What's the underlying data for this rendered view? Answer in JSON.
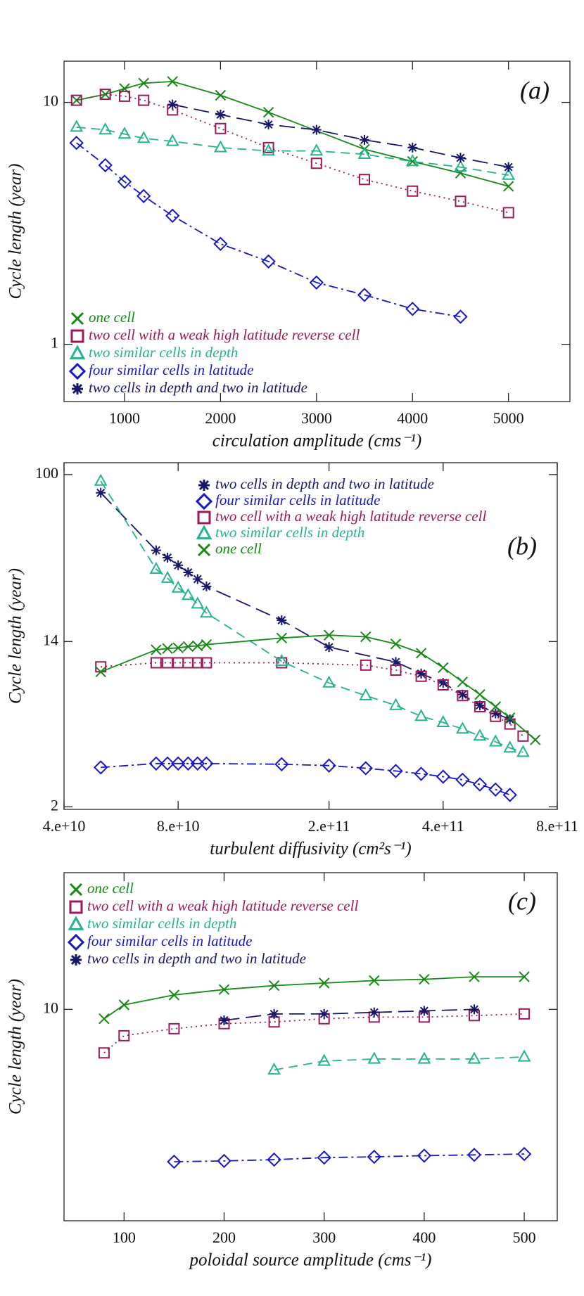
{
  "chart_data": [
    {
      "type": "line",
      "annotation": "(a)",
      "y_label": "Cycle length (year)",
      "x_label": "circulation amplitude (cms⁻¹)",
      "xlim": [
        370,
        5640
      ],
      "xticks": [
        1000,
        2000,
        3000,
        4000,
        5000
      ],
      "ylim": [
        0.58,
        14.8
      ],
      "yticks": [
        1,
        10
      ],
      "ylog": true,
      "xlog": false,
      "legend": "lower left",
      "series": [
        {
          "name": "one cell",
          "color": "#158a15",
          "marker": "x",
          "line_style": "solid",
          "x": [
            500,
            800,
            1000,
            1200,
            1500,
            2000,
            2500,
            3500,
            4000,
            4500,
            5000
          ],
          "values": [
            10.2,
            10.8,
            11.4,
            12.0,
            12.2,
            10.7,
            9.1,
            6.4,
            5.7,
            5.1,
            4.5
          ]
        },
        {
          "name": "two cell with a weak high latitude reverse cell",
          "color": "#9a1a5c",
          "marker": "square",
          "line_style": "dotted",
          "x": [
            500,
            800,
            1000,
            1200,
            1500,
            2000,
            2500,
            3000,
            3500,
            4000,
            4500,
            5000
          ],
          "values": [
            10.2,
            10.8,
            10.6,
            10.2,
            9.3,
            7.8,
            6.5,
            5.6,
            4.8,
            4.3,
            3.9,
            3.5
          ]
        },
        {
          "name": "two similar cells in depth",
          "color": "#25b38f",
          "marker": "triangle",
          "line_style": "dashed",
          "x": [
            500,
            800,
            1000,
            1200,
            1500,
            2000,
            2500,
            3000,
            3500,
            4000,
            4500,
            5000
          ],
          "values": [
            7.9,
            7.7,
            7.4,
            7.1,
            6.9,
            6.5,
            6.3,
            6.3,
            6.1,
            5.7,
            5.4,
            5.0
          ]
        },
        {
          "name": "four similar cells in latitude",
          "color": "#1717c4",
          "marker": "diamond",
          "line_style": "dashdot",
          "x": [
            500,
            800,
            1000,
            1200,
            1500,
            2000,
            2500,
            3000,
            3500,
            4000,
            4500
          ],
          "values": [
            6.8,
            5.5,
            4.7,
            4.1,
            3.4,
            2.6,
            2.2,
            1.8,
            1.6,
            1.4,
            1.3
          ]
        },
        {
          "name": "two cells in depth and two in latitude",
          "color": "#16166b",
          "marker": "asterisk",
          "line_style": "longdash",
          "x": [
            1500,
            2000,
            2500,
            3000,
            3500,
            4000,
            4500,
            5000
          ],
          "values": [
            9.8,
            8.9,
            8.1,
            7.7,
            7.0,
            6.5,
            5.9,
            5.4
          ]
        }
      ]
    },
    {
      "type": "line",
      "annotation": "(b)",
      "y_label": "Cycle length (year)",
      "x_label": "turbulent diffusivity (cm²s⁻¹)",
      "xlim": [
        40000000000.0,
        800000000000.0
      ],
      "xticks": [
        {
          "value": 40000000000.0,
          "label": "4.e+10"
        },
        {
          "value": 80000000000.0,
          "label": "8.e+10"
        },
        {
          "value": 200000000000.0,
          "label": "2.e+11"
        },
        {
          "value": 400000000000.0,
          "label": "4.e+11"
        },
        {
          "value": 800000000000.0,
          "label": "8.e+11"
        }
      ],
      "ylim": [
        1.94,
        115
      ],
      "yticks": [
        2,
        14,
        100
      ],
      "ylog": true,
      "xlog": true,
      "legend": "upper center",
      "series": [
        {
          "name": "two cells in depth and two in latitude",
          "color": "#16166b",
          "marker": "asterisk",
          "line_style": "longdash",
          "x": [
            50000000000.0,
            70000000000.0,
            75000000000.0,
            80000000000.0,
            85000000000.0,
            90000000000.0,
            95000000000.0,
            150000000000.0,
            200000000000.0,
            300000000000.0,
            350000000000.0,
            400000000000.0,
            450000000000.0,
            500000000000.0,
            550000000000.0,
            600000000000.0
          ],
          "values": [
            80.7,
            41,
            37.6,
            34.4,
            31.6,
            29.2,
            26.8,
            18.0,
            13.1,
            11.0,
            9.6,
            8.6,
            7.5,
            6.6,
            6.0,
            5.6
          ]
        },
        {
          "name": "four similar cells in latitude",
          "color": "#1717c4",
          "marker": "diamond",
          "line_style": "dashdot",
          "x": [
            50000000000.0,
            70000000000.0,
            75000000000.0,
            80000000000.0,
            85000000000.0,
            90000000000.0,
            95000000000.0,
            150000000000.0,
            200000000000.0,
            250000000000.0,
            300000000000.0,
            350000000000.0,
            400000000000.0,
            450000000000.0,
            500000000000.0,
            550000000000.0,
            600000000000.0
          ],
          "values": [
            3.18,
            3.33,
            3.33,
            3.33,
            3.33,
            3.33,
            3.33,
            3.3,
            3.25,
            3.15,
            3.05,
            2.95,
            2.85,
            2.75,
            2.6,
            2.45,
            2.3
          ]
        },
        {
          "name": "two cell with a weak high latitude reverse cell",
          "color": "#9a1a5c",
          "marker": "square",
          "line_style": "dotted",
          "x": [
            50000000000.0,
            70000000000.0,
            75000000000.0,
            80000000000.0,
            85000000000.0,
            90000000000.0,
            95000000000.0,
            150000000000.0,
            250000000000.0,
            300000000000.0,
            350000000000.0,
            400000000000.0,
            450000000000.0,
            500000000000.0,
            550000000000.0,
            600000000000.0,
            650000000000.0
          ],
          "values": [
            10.4,
            10.9,
            10.9,
            10.9,
            10.9,
            10.9,
            10.9,
            10.9,
            10.6,
            10.0,
            9.3,
            8.4,
            7.4,
            6.5,
            5.8,
            5.3,
            4.6
          ]
        },
        {
          "name": "two similar cells in depth",
          "color": "#25b38f",
          "marker": "triangle",
          "line_style": "dashed",
          "x": [
            50000000000.0,
            70000000000.0,
            75000000000.0,
            80000000000.0,
            85000000000.0,
            90000000000.0,
            95000000000.0,
            150000000000.0,
            200000000000.0,
            250000000000.0,
            300000000000.0,
            350000000000.0,
            400000000000.0,
            450000000000.0,
            500000000000.0,
            550000000000.0,
            600000000000.0,
            650000000000.0
          ],
          "values": [
            92.6,
            32.8,
            29.5,
            26.3,
            24.1,
            21.8,
            19.6,
            11.1,
            8.6,
            7.4,
            6.6,
            5.8,
            5.4,
            5.0,
            4.6,
            4.3,
            4.0,
            3.8
          ]
        },
        {
          "name": "one cell",
          "color": "#158a15",
          "marker": "x",
          "line_style": "solid",
          "x": [
            50000000000.0,
            70000000000.0,
            75000000000.0,
            80000000000.0,
            85000000000.0,
            90000000000.0,
            95000000000.0,
            150000000000.0,
            200000000000.0,
            250000000000.0,
            300000000000.0,
            350000000000.0,
            400000000000.0,
            450000000000.0,
            500000000000.0,
            550000000000.0,
            600000000000.0,
            700000000000.0
          ],
          "values": [
            9.8,
            12.7,
            12.9,
            13.0,
            13.2,
            13.3,
            13.5,
            14.6,
            15.1,
            14.8,
            13.6,
            12.2,
            10.3,
            8.7,
            7.5,
            6.5,
            5.7,
            4.4
          ]
        }
      ]
    },
    {
      "type": "line",
      "annotation": "(c)",
      "y_label": "Cycle length (year)",
      "x_label": "poloidal source amplitude (cms⁻¹)",
      "xlim": [
        40,
        533
      ],
      "xticks": [
        100,
        200,
        300,
        400,
        500
      ],
      "ylim": [
        2.47,
        24.7
      ],
      "yticks": [
        10
      ],
      "ylog": true,
      "xlog": false,
      "legend": "upper left",
      "series": [
        {
          "name": "one cell",
          "color": "#158a15",
          "marker": "x",
          "line_style": "solid",
          "x": [
            80,
            100,
            150,
            200,
            250,
            300,
            350,
            400,
            450,
            500
          ],
          "values": [
            9.4,
            10.3,
            11.0,
            11.4,
            11.7,
            11.9,
            12.1,
            12.2,
            12.4,
            12.4
          ]
        },
        {
          "name": "two cell with a weak high latitude reverse cell",
          "color": "#9a1a5c",
          "marker": "square",
          "line_style": "dotted",
          "x": [
            80,
            100,
            150,
            200,
            250,
            300,
            350,
            400,
            450,
            500
          ],
          "values": [
            7.5,
            8.4,
            8.8,
            9.1,
            9.2,
            9.4,
            9.5,
            9.5,
            9.6,
            9.7
          ]
        },
        {
          "name": "two similar cells in depth",
          "color": "#25b38f",
          "marker": "triangle",
          "line_style": "dashed",
          "x": [
            250,
            300,
            350,
            400,
            450,
            500
          ],
          "values": [
            6.7,
            7.1,
            7.2,
            7.2,
            7.2,
            7.3
          ]
        },
        {
          "name": "four similar cells in latitude",
          "color": "#1717c4",
          "marker": "diamond",
          "line_style": "dashdot",
          "x": [
            150,
            200,
            250,
            300,
            350,
            400,
            450,
            500
          ],
          "values": [
            3.65,
            3.67,
            3.7,
            3.75,
            3.77,
            3.8,
            3.82,
            3.84
          ]
        },
        {
          "name": "two cells in depth and two in latitude",
          "color": "#16166b",
          "marker": "asterisk",
          "line_style": "longdash",
          "x": [
            200,
            250,
            300,
            350,
            400,
            450
          ],
          "values": [
            9.3,
            9.7,
            9.7,
            9.8,
            9.9,
            10.0
          ]
        }
      ]
    }
  ]
}
